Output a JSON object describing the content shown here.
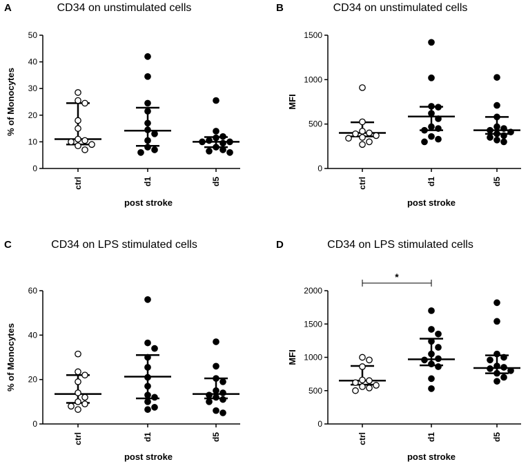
{
  "chart_data": [
    {
      "panel": "A",
      "type": "scatter",
      "title": "CD34 on unstimulated cells",
      "xlabel": "post stroke",
      "ylabel": "% of Monocytes",
      "ylim": [
        0,
        50
      ],
      "yticks": [
        0,
        10,
        20,
        30,
        40,
        50
      ],
      "categories": [
        "ctrl",
        "d1",
        "d5"
      ],
      "groups": [
        {
          "name": "ctrl",
          "filled": false,
          "median": 11,
          "q1": 9,
          "q3": 24.5,
          "values": [
            28.5,
            25.5,
            24.5,
            18,
            15,
            11,
            10.5,
            10,
            9,
            8.5,
            7
          ]
        },
        {
          "name": "d1",
          "filled": true,
          "median": 14.2,
          "q1": 8.5,
          "q3": 22.8,
          "values": [
            42,
            34.5,
            24.5,
            21.5,
            17,
            14.5,
            13,
            10.5,
            8,
            7,
            6
          ]
        },
        {
          "name": "d5",
          "filled": true,
          "median": 10,
          "q1": 8,
          "q3": 11.8,
          "values": [
            25.5,
            14,
            12,
            11.5,
            10.5,
            10,
            10,
            9.5,
            8,
            7,
            6.5,
            6
          ]
        }
      ],
      "annotation": null
    },
    {
      "panel": "B",
      "type": "scatter",
      "title": "CD34 on unstimulated cells",
      "xlabel": "post stroke",
      "ylabel": "MFI",
      "ylim": [
        0,
        1500
      ],
      "yticks": [
        0,
        500,
        1000,
        1500
      ],
      "categories": [
        "ctrl",
        "d1",
        "d5"
      ],
      "groups": [
        {
          "name": "ctrl",
          "filled": false,
          "median": 400,
          "q1": 360,
          "q3": 520,
          "values": [
            910,
            525,
            420,
            400,
            390,
            370,
            350,
            340,
            300,
            270
          ]
        },
        {
          "name": "d1",
          "filled": true,
          "median": 585,
          "q1": 430,
          "q3": 695,
          "values": [
            1420,
            1020,
            700,
            690,
            620,
            560,
            470,
            450,
            430,
            360,
            330,
            300
          ]
        },
        {
          "name": "d5",
          "filled": true,
          "median": 430,
          "q1": 390,
          "q3": 580,
          "values": [
            1025,
            710,
            580,
            470,
            450,
            430,
            410,
            390,
            370,
            350,
            320,
            300
          ]
        }
      ],
      "annotation": null
    },
    {
      "panel": "C",
      "type": "scatter",
      "title": "CD34 on LPS stimulated cells",
      "xlabel": "post stroke",
      "ylabel": "% of Monocytes",
      "ylim": [
        0,
        60
      ],
      "yticks": [
        0,
        20,
        40,
        60
      ],
      "categories": [
        "ctrl",
        "d1",
        "d5"
      ],
      "groups": [
        {
          "name": "ctrl",
          "filled": false,
          "median": 13.5,
          "q1": 9.5,
          "q3": 22,
          "values": [
            31.5,
            23.5,
            22,
            19,
            14,
            12,
            10,
            9,
            8,
            6.5
          ]
        },
        {
          "name": "d1",
          "filled": true,
          "median": 21.3,
          "q1": 11.5,
          "q3": 31,
          "values": [
            56,
            36.5,
            34,
            30,
            25.5,
            21,
            17,
            13,
            12,
            10,
            7.5,
            6.5
          ]
        },
        {
          "name": "d5",
          "filled": true,
          "median": 13.5,
          "q1": 11.5,
          "q3": 20.5,
          "values": [
            37,
            26,
            20.5,
            19,
            15,
            14,
            13,
            12,
            11,
            10,
            6,
            5
          ]
        }
      ],
      "annotation": null
    },
    {
      "panel": "D",
      "type": "scatter",
      "title": "CD34 on LPS stimulated cells",
      "xlabel": "post stroke",
      "ylabel": "MFI",
      "ylim": [
        0,
        2000
      ],
      "yticks": [
        0,
        500,
        1000,
        1500,
        2000
      ],
      "categories": [
        "ctrl",
        "d1",
        "d5"
      ],
      "groups": [
        {
          "name": "ctrl",
          "filled": false,
          "median": 650,
          "q1": 590,
          "q3": 870,
          "values": [
            1000,
            960,
            860,
            660,
            650,
            620,
            580,
            560,
            540,
            500
          ]
        },
        {
          "name": "d1",
          "filled": true,
          "median": 970,
          "q1": 880,
          "q3": 1280,
          "values": [
            1700,
            1420,
            1350,
            1240,
            1150,
            1050,
            980,
            960,
            900,
            860,
            680,
            530
          ]
        },
        {
          "name": "d5",
          "filled": true,
          "median": 840,
          "q1": 760,
          "q3": 1030,
          "values": [
            1820,
            1540,
            1050,
            1000,
            960,
            870,
            850,
            830,
            800,
            760,
            700,
            640
          ]
        }
      ],
      "annotation": {
        "from": "ctrl",
        "to": "d1",
        "label": "*"
      }
    }
  ]
}
